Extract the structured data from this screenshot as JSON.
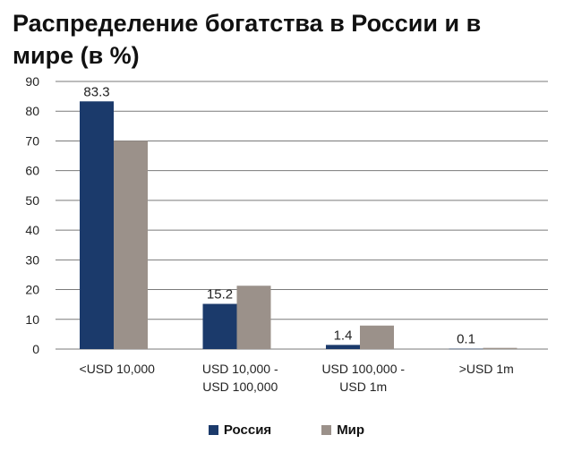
{
  "chart_data": {
    "type": "bar",
    "title": "Распределение богатства в России и в мире (в %)",
    "categories": [
      "<USD 10,000",
      "USD 10,000 - USD 100,000",
      "USD 100,000 - USD 1m",
      ">USD 1m"
    ],
    "category_lines": [
      [
        "<USD 10,000"
      ],
      [
        "USD 10,000 -",
        "USD 100,000"
      ],
      [
        "USD 100,000 -",
        "USD 1m"
      ],
      [
        ">USD 1m"
      ]
    ],
    "series": [
      {
        "name": "Россия",
        "values": [
          83.3,
          15.2,
          1.4,
          0.1
        ],
        "color": "#1b3a6b",
        "labels": [
          "83.3",
          "15.2",
          "1.4",
          "0.1"
        ]
      },
      {
        "name": "Мир",
        "values": [
          70.0,
          21.3,
          7.9,
          0.4
        ],
        "color": "#9b918a"
      }
    ],
    "yticks": [
      0,
      10,
      20,
      30,
      40,
      50,
      60,
      70,
      80,
      90
    ],
    "ylim": [
      0,
      90
    ],
    "grid": true,
    "legend_position": "bottom"
  }
}
